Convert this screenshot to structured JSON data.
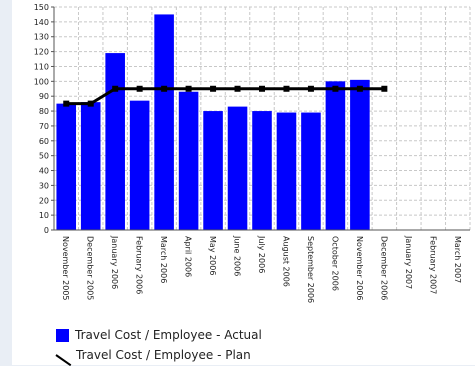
{
  "chart_data": {
    "type": "bar",
    "categories": [
      "November 2005",
      "December 2005",
      "January 2006",
      "February 2006",
      "March 2006",
      "April 2006",
      "May 2006",
      "June 2006",
      "July 2006",
      "August 2006",
      "September 2006",
      "October 2006",
      "November 2006",
      "December 2006",
      "January 2007",
      "February 2007",
      "March 2007"
    ],
    "series": [
      {
        "name": "Travel Cost / Employee - Actual",
        "type": "bar",
        "color": "#0000ff",
        "values": [
          85,
          86,
          119,
          87,
          145,
          93,
          80,
          83,
          80,
          79,
          79,
          100,
          101,
          null,
          null,
          null,
          null
        ]
      },
      {
        "name": "Travel Cost / Employee - Plan",
        "type": "line",
        "color": "#000000",
        "values": [
          85,
          85,
          95,
          95,
          95,
          95,
          95,
          95,
          95,
          95,
          95,
          95,
          95,
          95,
          null,
          null,
          null
        ]
      }
    ],
    "yticks": [
      0,
      10,
      20,
      30,
      40,
      50,
      60,
      70,
      80,
      90,
      100,
      110,
      120,
      130,
      140,
      150
    ],
    "ylim": [
      0,
      150
    ],
    "grid": true,
    "legend": "bottom-left"
  }
}
